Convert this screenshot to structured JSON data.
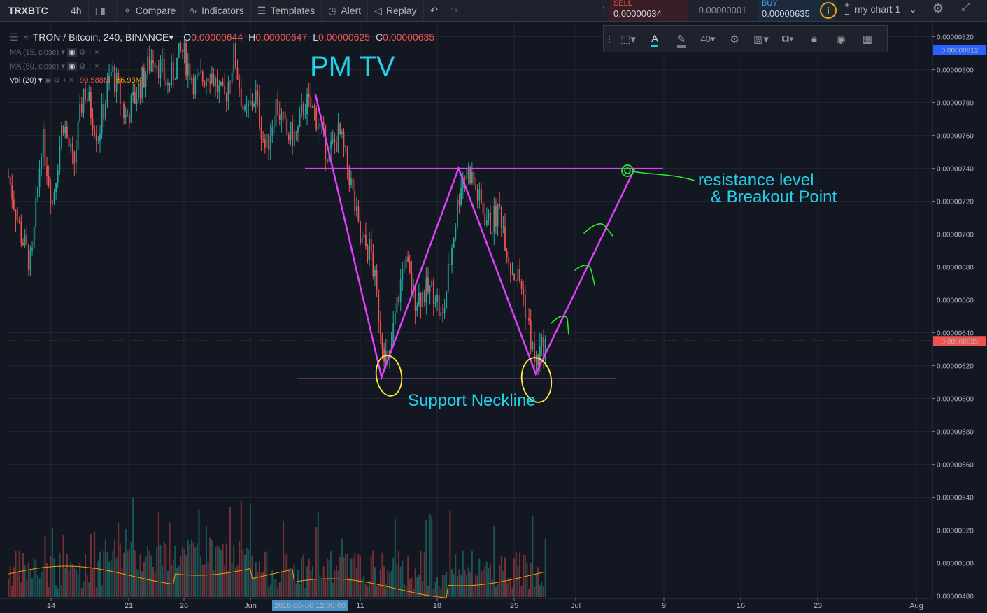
{
  "toolbar": {
    "symbol": "TRXBTC",
    "interval": "4h",
    "compare": "Compare",
    "indicators": "Indicators",
    "templates": "Templates",
    "alert": "Alert",
    "replay": "Replay",
    "sell_label": "SELL",
    "sell_price": "0.00000634",
    "spread": "0.00000001",
    "buy_label": "BUY",
    "buy_price": "0.00000635",
    "chart_name": "my chart 1",
    "font_size": "40"
  },
  "legend": {
    "title": "TRON / Bitcoin, 240, BINANCE",
    "o_label": "O",
    "o_value": "0.00000644",
    "h_label": "H",
    "h_value": "0.00000647",
    "l_label": "L",
    "l_value": "0.00000625",
    "c_label": "C",
    "c_value": "0.00000635",
    "ma1": "MA (15, close)",
    "ma2": "MA (50, close)",
    "vol_label": "Vol (20)",
    "vol_value": "90.588M",
    "vol_ma_value": "66.93M"
  },
  "colors": {
    "up": "#26a69a",
    "down": "#ef5350",
    "pattern": "#e040fb",
    "annotation_text": "#22d0e8",
    "circle": "#ffeb3b",
    "arrow": "#2ee62e"
  },
  "chart_data": {
    "type": "candlestick",
    "title": "TRON / Bitcoin, 240, BINANCE",
    "price_axis_ticks": [
      "0.00000820",
      "0.00000800",
      "0.00000780",
      "0.00000760",
      "0.00000740",
      "0.00000720",
      "0.00000700",
      "0.00000680",
      "0.00000660",
      "0.00000640",
      "0.00000620",
      "0.00000600",
      "0.00000580",
      "0.00000560",
      "0.00000540",
      "0.00000520",
      "0.00000500",
      "0.00000480"
    ],
    "ylim": [
      4.8e-06,
      8.2e-06
    ],
    "date_axis_ticks": [
      "14",
      "21",
      "26",
      "Jun",
      "11",
      "18",
      "25",
      "Jul",
      "9",
      "16",
      "23",
      "Aug"
    ],
    "crosshair_date": "2018-06-06 12:00:00",
    "last_price": "0.00000635",
    "prev_price_marker": "0.00000812",
    "resistance_level": 7.4e-06,
    "support_level": 6.12e-06,
    "pattern": {
      "type": "double bottom (W)",
      "points": [
        {
          "date": "2018-06-07",
          "price": 7.85e-06
        },
        {
          "date": "2018-06-13",
          "price": 6.13e-06
        },
        {
          "date": "2018-06-20",
          "price": 7.4e-06
        },
        {
          "date": "2018-06-27",
          "price": 6.15e-06
        },
        {
          "date": "2018-07-06",
          "price": 7.4e-06
        }
      ]
    },
    "annotations": [
      "PM TV",
      "resistance level",
      "& Breakout Point",
      "Support Neckline"
    ]
  }
}
